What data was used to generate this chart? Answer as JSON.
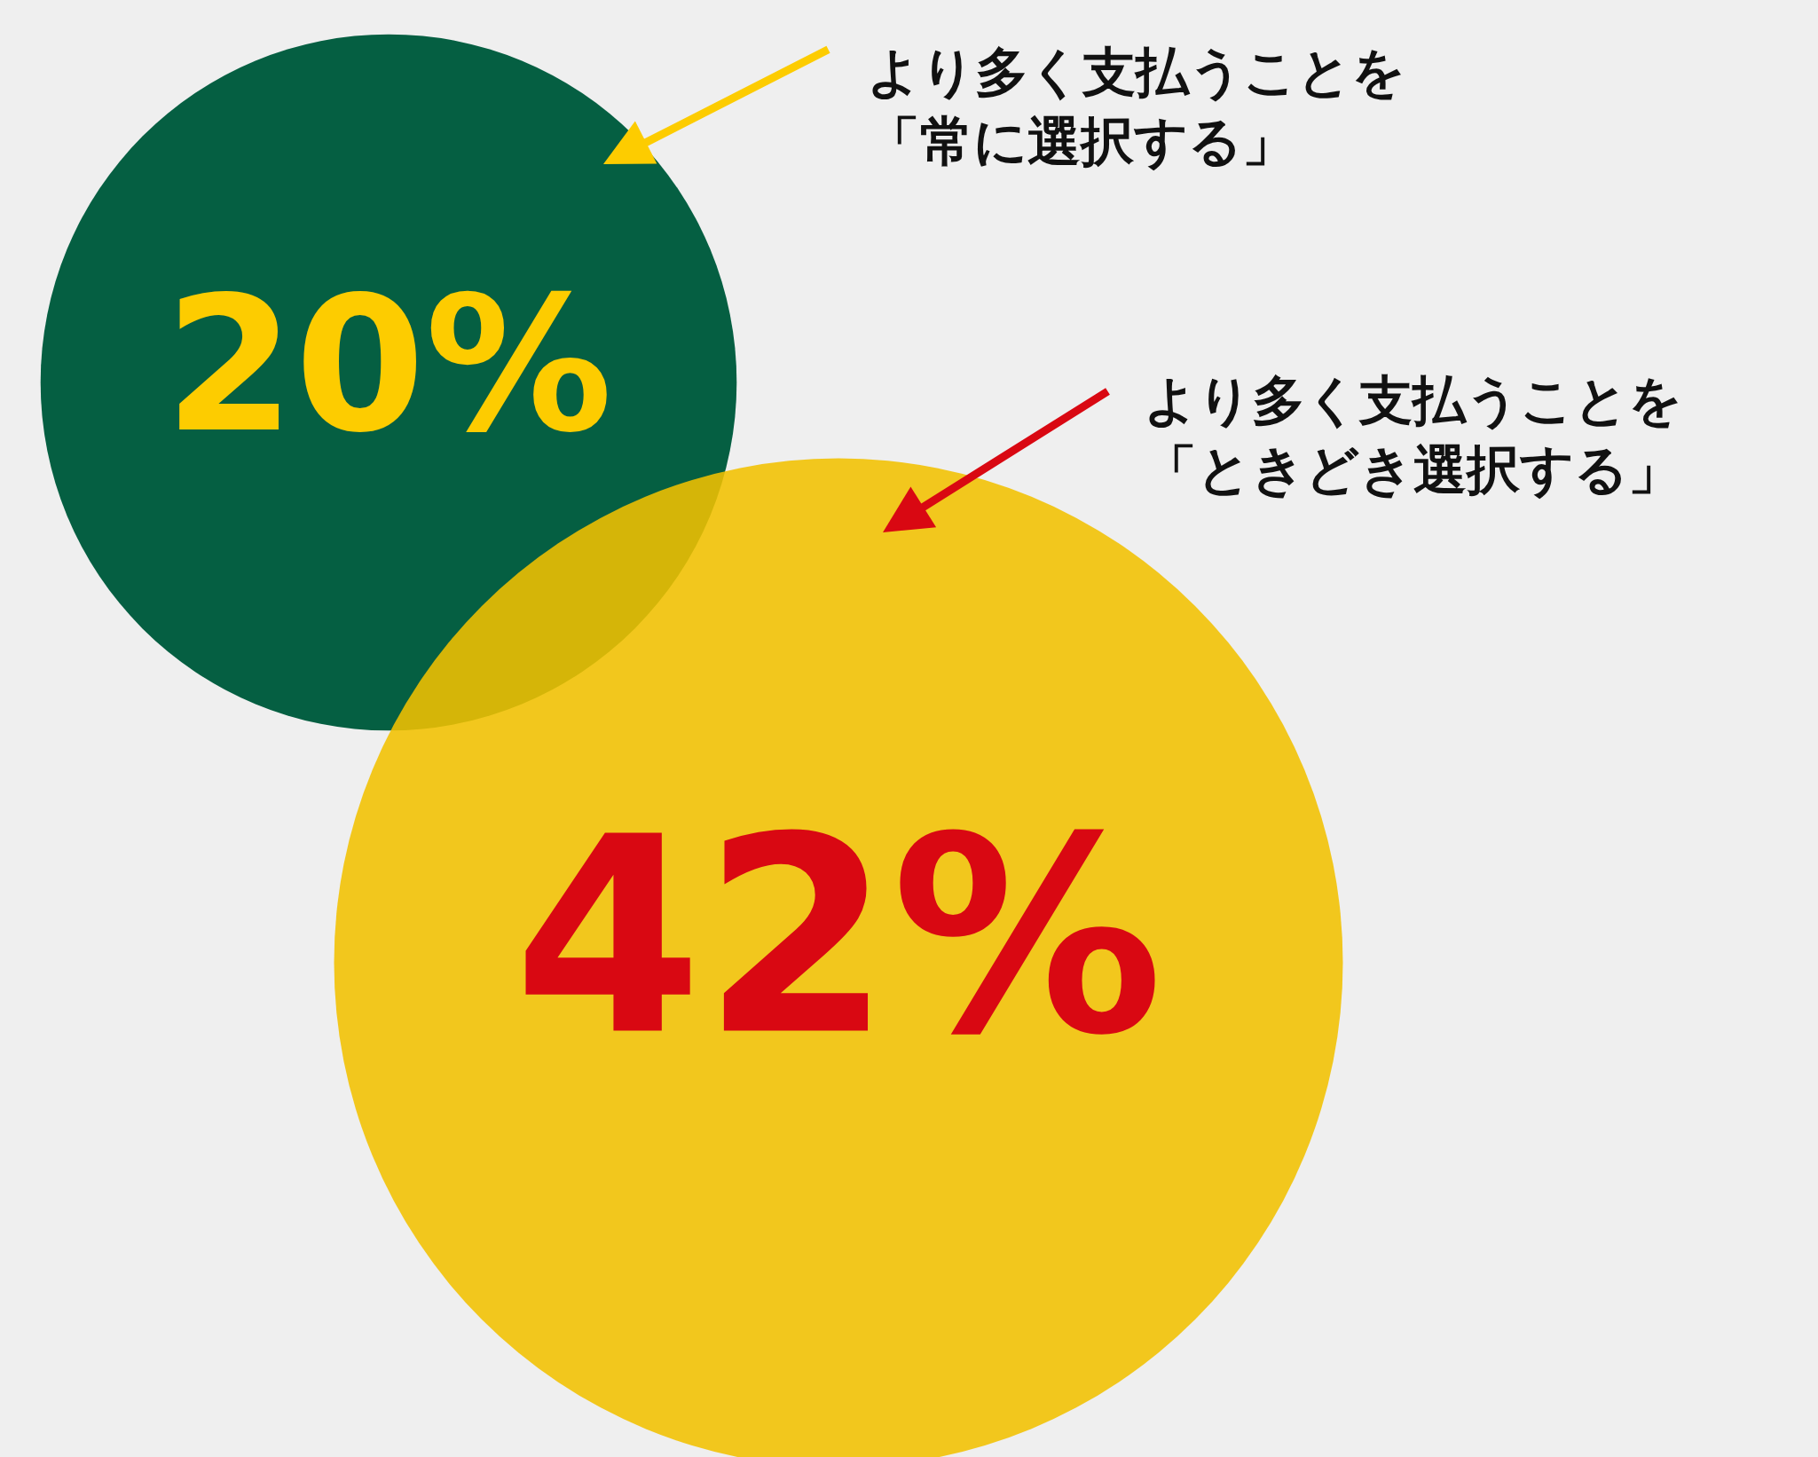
{
  "chart_data": {
    "type": "other",
    "categories": [
      "より多く支払うことを「常に選択する」",
      "より多く支払うことを「ときどき選択する」"
    ],
    "values": [
      20,
      42
    ],
    "colors": [
      "#055f42",
      "#f2c200"
    ],
    "value_labels": [
      "20%",
      "42%"
    ]
  }
}
